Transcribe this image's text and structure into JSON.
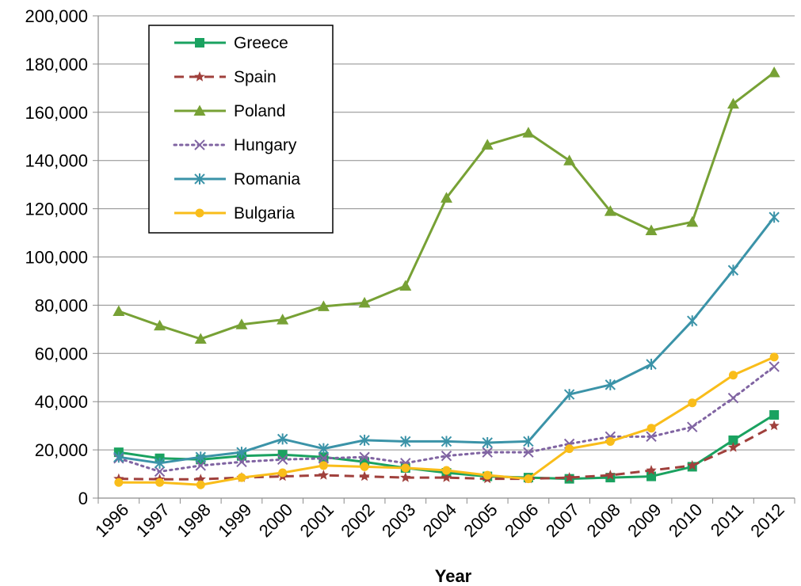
{
  "chart_data": {
    "type": "line",
    "title": "",
    "xlabel": "Year",
    "ylabel": "",
    "ylim": [
      0,
      200000
    ],
    "yticks": [
      0,
      20000,
      40000,
      60000,
      80000,
      100000,
      120000,
      140000,
      160000,
      180000,
      200000
    ],
    "ytick_labels": [
      "0",
      "20,000",
      "40,000",
      "60,000",
      "80,000",
      "100,000",
      "120,000",
      "140,000",
      "160,000",
      "180,000",
      "200,000"
    ],
    "categories": [
      "1996",
      "1997",
      "1998",
      "1999",
      "2000",
      "2001",
      "2002",
      "2003",
      "2004",
      "2005",
      "2006",
      "2007",
      "2008",
      "2009",
      "2010",
      "2011",
      "2012"
    ],
    "grid": true,
    "legend_position": "top-left",
    "series": [
      {
        "name": "Greece",
        "color": "#1aa260",
        "marker": "square",
        "dash": "solid",
        "values": [
          19000,
          16500,
          16000,
          17500,
          18000,
          17000,
          15000,
          12500,
          10500,
          9000,
          8500,
          8000,
          8500,
          9000,
          13000,
          24000,
          34500
        ]
      },
      {
        "name": "Spain",
        "color": "#a0403c",
        "marker": "star",
        "dash": "dashed",
        "values": [
          8000,
          7800,
          7800,
          8500,
          9000,
          9500,
          9000,
          8500,
          8500,
          8000,
          8000,
          8500,
          9500,
          11500,
          13500,
          21000,
          30000
        ]
      },
      {
        "name": "Poland",
        "color": "#77a135",
        "marker": "triangle",
        "dash": "solid",
        "values": [
          77500,
          71500,
          66000,
          72000,
          74000,
          79500,
          81000,
          88000,
          124500,
          146500,
          151500,
          140000,
          119000,
          111000,
          114500,
          163500,
          176500
        ]
      },
      {
        "name": "Hungary",
        "color": "#8064a2",
        "marker": "x",
        "dash": "dotted",
        "values": [
          16500,
          11000,
          13500,
          15000,
          16000,
          16500,
          17000,
          14500,
          17500,
          19000,
          19000,
          22500,
          25500,
          25500,
          29500,
          41500,
          54500
        ]
      },
      {
        "name": "Romania",
        "color": "#3b93a8",
        "marker": "asterisk",
        "dash": "solid",
        "values": [
          17000,
          14500,
          17000,
          19000,
          24500,
          20500,
          24000,
          23500,
          23500,
          23000,
          23500,
          43000,
          47000,
          55500,
          73500,
          94500,
          116500
        ]
      },
      {
        "name": "Bulgaria",
        "color": "#f9bd1a",
        "marker": "circle",
        "dash": "solid",
        "values": [
          6500,
          6500,
          5500,
          8500,
          10500,
          13500,
          13000,
          12500,
          11500,
          9500,
          8000,
          20500,
          23500,
          29000,
          39500,
          51000,
          58500
        ]
      }
    ]
  }
}
